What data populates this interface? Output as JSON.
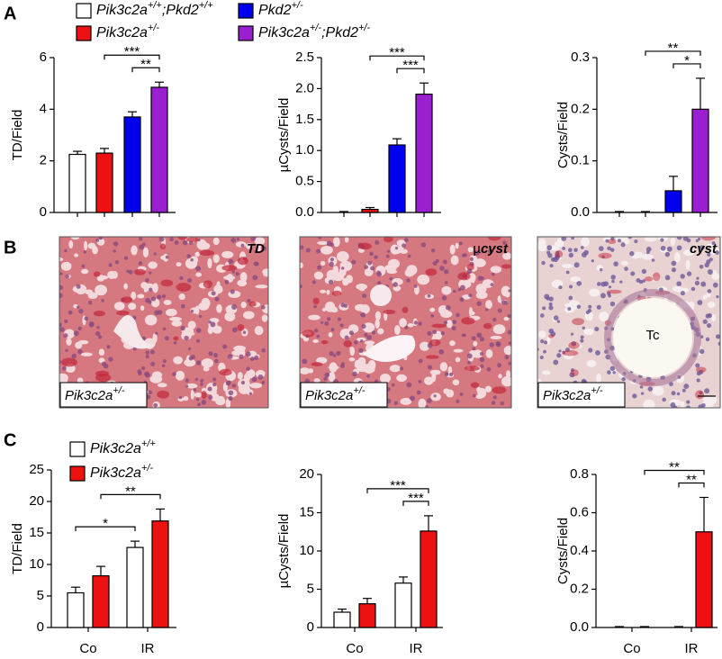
{
  "panels": [
    "A",
    "B",
    "C"
  ],
  "legend_a": [
    {
      "name": [
        "Pik3c2a",
        "+/+",
        ";Pkd2",
        "+/+"
      ],
      "color": "#ffffff"
    },
    {
      "name": [
        "Pkd2",
        "+/-"
      ],
      "color": "#0000ee"
    },
    {
      "name": [
        "Pik3c2a",
        "+/-"
      ],
      "color": "#ee1111"
    },
    {
      "name": [
        "Pik3c2a",
        "+/-",
        ";Pkd2",
        "+/-"
      ],
      "color": "#9a1fd0"
    }
  ],
  "images": [
    {
      "corner": [
        "TD"
      ],
      "genotype": [
        "Pik3c2a",
        "+/-"
      ]
    },
    {
      "corner": [
        "µ",
        "cyst"
      ],
      "genotype": [
        "Pik3c2a",
        "+/-"
      ]
    },
    {
      "corner": [
        "cyst"
      ],
      "genotype": [
        "Pik3c2a",
        "+/-"
      ],
      "lumen": "Tc"
    }
  ],
  "chart_data": [
    {
      "type": "bar",
      "ylabel": "TD/Field",
      "categories": [
        null,
        null,
        null,
        null
      ],
      "values": [
        2.25,
        2.3,
        3.7,
        4.85
      ],
      "errors": [
        0.12,
        0.18,
        0.2,
        0.2
      ],
      "colors": [
        "#ffffff",
        "#ee1111",
        "#0000ee",
        "#9a1fd0"
      ],
      "ylim": [
        0,
        6
      ],
      "yticks": [
        0,
        2,
        4,
        6
      ],
      "brackets": [
        {
          "text": "**",
          "between": [
            2,
            3
          ]
        },
        {
          "text": "***",
          "between": [
            1,
            3
          ]
        }
      ]
    },
    {
      "type": "bar",
      "ylabel": "µCysts/Field",
      "categories": [
        null,
        null,
        null,
        null
      ],
      "values": [
        0,
        0.05,
        1.09,
        1.91
      ],
      "errors": [
        0,
        0.03,
        0.1,
        0.18
      ],
      "colors": [
        "#ffffff",
        "#ee1111",
        "#0000ee",
        "#9a1fd0"
      ],
      "ylim": [
        0,
        2.5
      ],
      "yticks": [
        {
          "value": 0,
          "label": "0.0"
        },
        0.5,
        {
          "value": 1,
          "label": "1.0"
        },
        1.5,
        {
          "value": 2,
          "label": "2.0"
        },
        2.5
      ],
      "brackets": [
        {
          "text": "***",
          "between": [
            2,
            3
          ]
        },
        {
          "text": "***",
          "between": [
            1,
            3
          ]
        }
      ]
    },
    {
      "type": "bar",
      "ylabel": "Cysts/Field",
      "categories": [
        null,
        null,
        null,
        null
      ],
      "values": [
        0,
        0,
        0.042,
        0.2
      ],
      "errors": [
        0,
        0,
        0.028,
        0.06
      ],
      "colors": [
        "#ffffff",
        "#ee1111",
        "#0000ee",
        "#9a1fd0"
      ],
      "ylim": [
        0,
        0.3
      ],
      "yticks": [
        {
          "value": 0,
          "label": "0.0"
        },
        0.1,
        0.2,
        0.3
      ],
      "brackets": [
        {
          "text": "*",
          "between": [
            2,
            3
          ]
        },
        {
          "text": "**",
          "between": [
            1,
            3
          ]
        }
      ]
    },
    {
      "type": "grouped-bar",
      "ylabel": "TD/Field",
      "categories": [
        "Co",
        "IR"
      ],
      "series": [
        {
          "name": [
            "Pik3c2a",
            "+/+"
          ],
          "color": "#ffffff",
          "values": [
            5.5,
            12.7
          ],
          "errors": [
            0.9,
            1.0
          ]
        },
        {
          "name": [
            "Pik3c2a",
            "+/-"
          ],
          "color": "#ee1111",
          "values": [
            8.2,
            16.9
          ],
          "errors": [
            1.5,
            1.9
          ]
        }
      ],
      "ylim": [
        0,
        25
      ],
      "yticks": [
        0,
        5,
        10,
        15,
        20,
        25
      ],
      "brackets": [
        {
          "text": "*",
          "between": [
            [
              0,
              0
            ],
            [
              0,
              1
            ]
          ]
        },
        {
          "text": "**",
          "between": [
            [
              1,
              0
            ],
            [
              1,
              1
            ]
          ]
        }
      ]
    },
    {
      "type": "grouped-bar",
      "ylabel": "µCysts/Field",
      "categories": [
        "Co",
        "IR"
      ],
      "series": [
        {
          "color": "#ffffff",
          "values": [
            2.0,
            5.8
          ],
          "errors": [
            0.4,
            0.8
          ]
        },
        {
          "color": "#ee1111",
          "values": [
            3.1,
            12.6
          ],
          "errors": [
            0.7,
            2.0
          ]
        }
      ],
      "ylim": [
        0,
        20
      ],
      "yticks": [
        0,
        5,
        10,
        15,
        20
      ],
      "brackets": [
        {
          "text": "***",
          "between": [
            [
              0,
              1
            ],
            [
              1,
              1
            ]
          ]
        },
        {
          "text": "***",
          "between": [
            [
              1,
              0
            ],
            [
              1,
              1
            ]
          ]
        }
      ]
    },
    {
      "type": "grouped-bar",
      "ylabel": "Cysts/Field",
      "categories": [
        "Co",
        "IR"
      ],
      "series": [
        {
          "color": "#ffffff",
          "values": [
            0,
            0
          ],
          "errors": [
            0,
            0
          ]
        },
        {
          "color": "#ee1111",
          "values": [
            0,
            0.5
          ],
          "errors": [
            0,
            0.18
          ]
        }
      ],
      "ylim": [
        0,
        0.8
      ],
      "yticks": [
        {
          "value": 0,
          "label": "0.0"
        },
        0.2,
        0.4,
        0.6,
        0.8
      ],
      "brackets": [
        {
          "text": "**",
          "between": [
            [
              0,
              1
            ],
            [
              1,
              1
            ]
          ]
        },
        {
          "text": "**",
          "between": [
            [
              1,
              0
            ],
            [
              1,
              1
            ]
          ]
        }
      ]
    }
  ]
}
